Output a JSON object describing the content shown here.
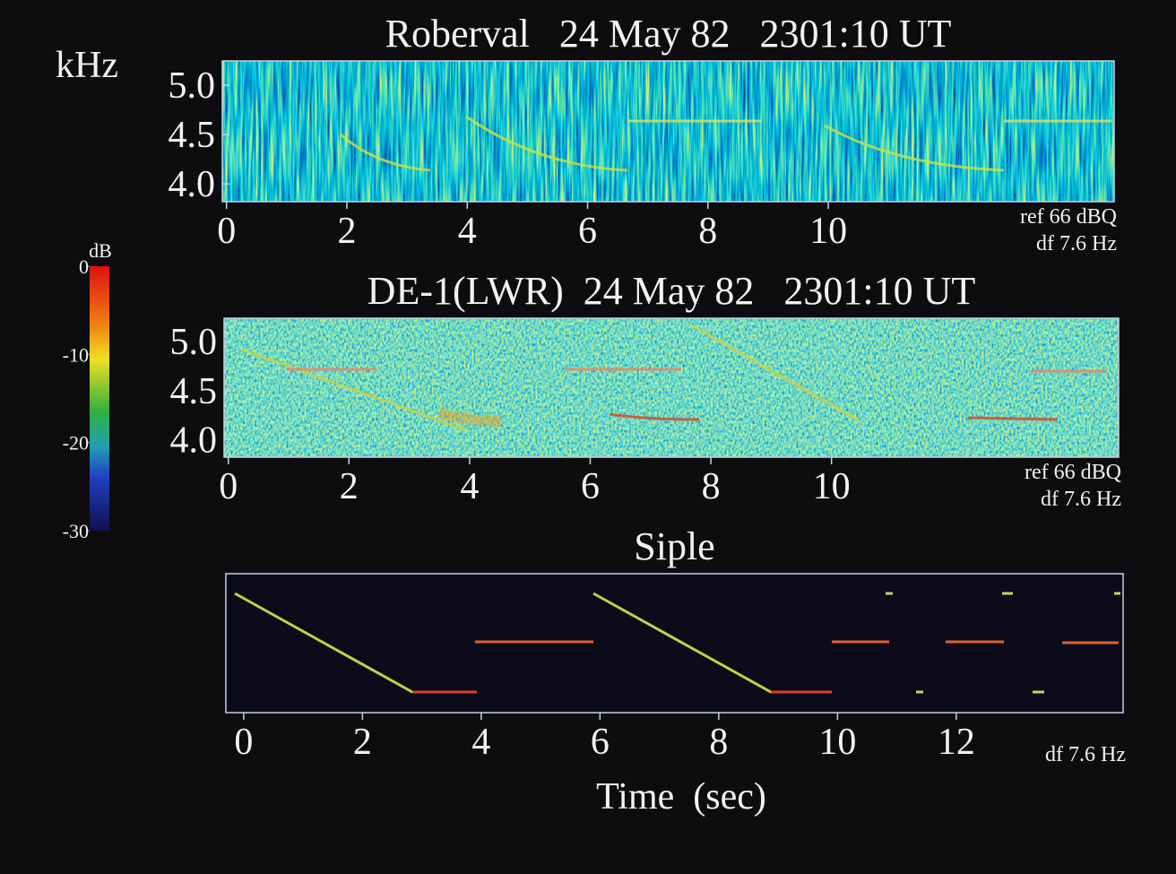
{
  "chart_data": [
    {
      "type": "spectrogram",
      "title": "Roberval   24 May 82   2301:10 UT",
      "y_label": "kHz",
      "xlim": [
        -0.07,
        14.75
      ],
      "ylim": [
        3.82,
        5.245
      ],
      "xticks": [
        0,
        2,
        4,
        6,
        8,
        10
      ],
      "yticks": [
        {
          "value": 5,
          "label": "5.0"
        },
        4.5,
        {
          "value": 4,
          "label": "4.0"
        }
      ],
      "annotations": [
        "ref 66 dBQ",
        "df 7.6 Hz"
      ]
    },
    {
      "type": "spectrogram",
      "title": "DE-1(LWR)  24 May 82   2301:10 UT",
      "xlim": [
        -0.07,
        14.76
      ],
      "ylim": [
        3.82,
        5.24
      ],
      "xticks": [
        0,
        2,
        4,
        6,
        8,
        10
      ],
      "yticks": [
        {
          "value": 5,
          "label": "5.0"
        },
        4.5,
        {
          "value": 4,
          "label": "4.0"
        }
      ],
      "annotations": [
        "ref 66 dBQ",
        "df 7.6 Hz"
      ]
    },
    {
      "type": "spectrogram",
      "title": "Siple",
      "x_label": "Time  (sec)",
      "xlim": [
        -0.3,
        14.81
      ],
      "xticks": [
        0,
        2,
        4,
        6,
        8,
        10,
        12
      ],
      "annotations": [
        "df 7.6 Hz"
      ]
    }
  ],
  "colorbar": {
    "label": "dB",
    "ylim": [
      -30,
      0
    ],
    "ticks": [
      0,
      -10,
      -20,
      -30
    ]
  }
}
